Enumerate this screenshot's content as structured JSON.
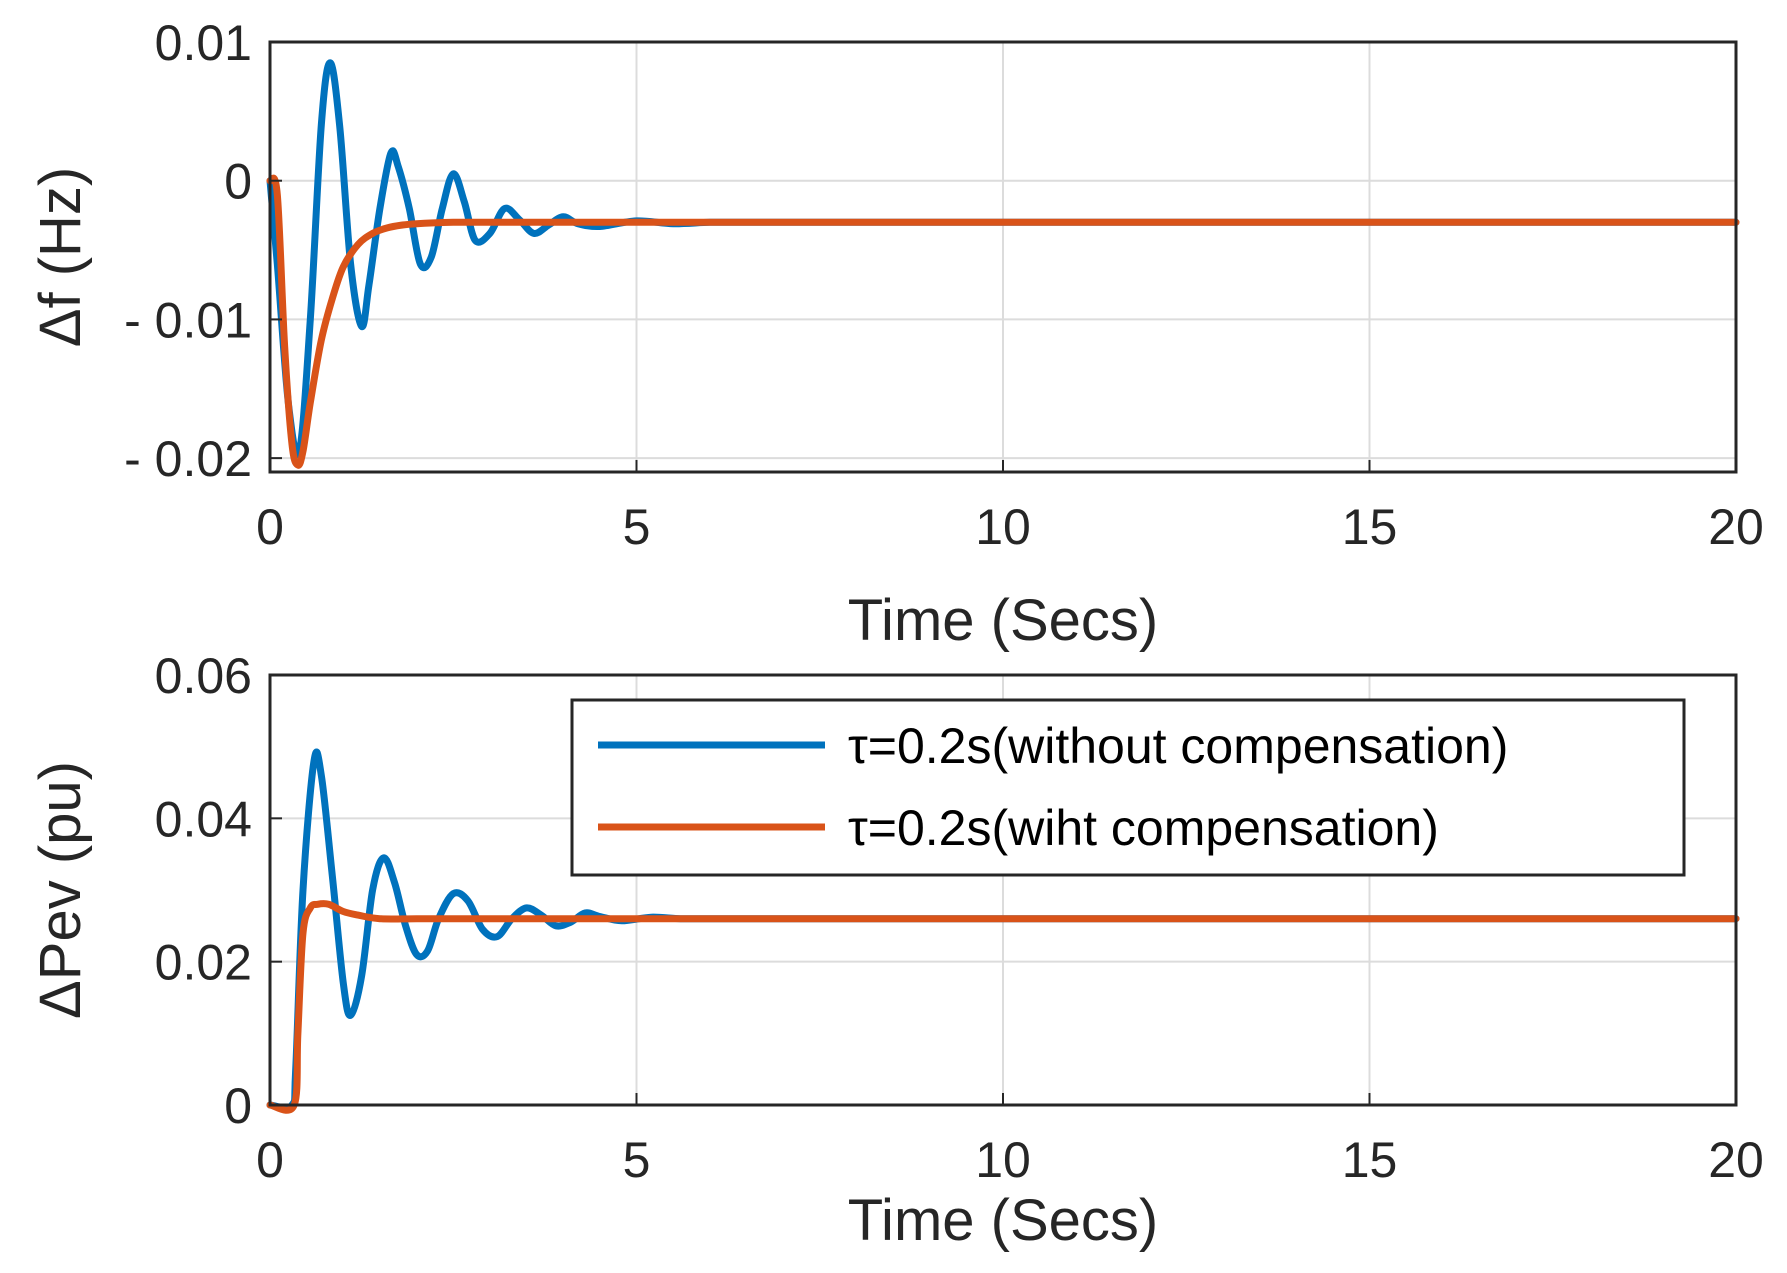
{
  "chart_data": [
    {
      "type": "line",
      "xlabel": "Time (Secs)",
      "ylabel": "Δf (Hz)",
      "xlim": [
        0,
        20
      ],
      "ylim": [
        -0.021,
        0.01
      ],
      "xticks": [
        0,
        5,
        10,
        15,
        20
      ],
      "xtick_labels": [
        "0",
        "5",
        "10",
        "15",
        "20"
      ],
      "yticks": [
        0.01,
        0,
        -0.01,
        -0.02
      ],
      "ytick_labels": [
        "0.01",
        "0",
        "- 0.01",
        "- 0.02"
      ],
      "grid": true,
      "series": [
        {
          "name": "τ=0.2s(without compensation)",
          "color": "#0072BD",
          "x": [
            0,
            0.1,
            0.25,
            0.4,
            0.55,
            0.7,
            0.82,
            0.95,
            1.1,
            1.25,
            1.35,
            1.5,
            1.65,
            1.75,
            1.9,
            2.05,
            2.2,
            2.35,
            2.5,
            2.65,
            2.8,
            3.0,
            3.2,
            3.4,
            3.6,
            3.8,
            4.0,
            4.2,
            4.5,
            5.0,
            5.5,
            6.0,
            6.5,
            7.0,
            8.0,
            10.0,
            12.0,
            15.0,
            20.0
          ],
          "y": [
            0,
            -0.006,
            -0.016,
            -0.0195,
            -0.01,
            0.004,
            0.0085,
            0.004,
            -0.006,
            -0.0105,
            -0.0075,
            -0.002,
            0.002,
            0.001,
            -0.002,
            -0.006,
            -0.0055,
            -0.002,
            0.0005,
            -0.0015,
            -0.0043,
            -0.0038,
            -0.002,
            -0.0028,
            -0.0038,
            -0.0032,
            -0.0026,
            -0.0031,
            -0.0033,
            -0.0029,
            -0.0031,
            -0.003,
            -0.003,
            -0.003,
            -0.003,
            -0.003,
            -0.003,
            -0.003,
            -0.003
          ]
        },
        {
          "name": "τ=0.2s(wiht compensation)",
          "color": "#D95319",
          "x": [
            0,
            0.1,
            0.2,
            0.3,
            0.38,
            0.45,
            0.55,
            0.7,
            0.85,
            1.0,
            1.2,
            1.4,
            1.6,
            1.8,
            2.0,
            2.5,
            3.0,
            4.0,
            5.0,
            10.0,
            15.0,
            20.0
          ],
          "y": [
            0,
            -0.001,
            -0.012,
            -0.019,
            -0.0205,
            -0.0195,
            -0.016,
            -0.0115,
            -0.0085,
            -0.0062,
            -0.0046,
            -0.0038,
            -0.0034,
            -0.0032,
            -0.0031,
            -0.003,
            -0.003,
            -0.003,
            -0.003,
            -0.003,
            -0.003,
            -0.003
          ]
        }
      ]
    },
    {
      "type": "line",
      "xlabel": "Time (Secs)",
      "ylabel": "ΔPev (pu)",
      "xlim": [
        0,
        20
      ],
      "ylim": [
        0,
        0.06
      ],
      "xticks": [
        0,
        5,
        10,
        15,
        20
      ],
      "xtick_labels": [
        "0",
        "5",
        "10",
        "15",
        "20"
      ],
      "yticks": [
        0.06,
        0.04,
        0.02,
        0
      ],
      "ytick_labels": [
        "0.06",
        "0.04",
        "0.02",
        "0"
      ],
      "grid": true,
      "legend": "top-right",
      "series": [
        {
          "name": "τ=0.2s(without compensation)",
          "color": "#0072BD",
          "x": [
            0,
            0.3,
            0.35,
            0.45,
            0.6,
            0.7,
            0.85,
            1.0,
            1.1,
            1.25,
            1.4,
            1.55,
            1.7,
            1.85,
            2.0,
            2.15,
            2.3,
            2.5,
            2.7,
            2.9,
            3.1,
            3.3,
            3.5,
            3.7,
            3.9,
            4.1,
            4.3,
            4.5,
            4.8,
            5.2,
            5.6,
            6.0,
            7.0,
            8.0,
            10.0,
            15.0,
            20.0
          ],
          "y": [
            0,
            0,
            0.005,
            0.03,
            0.048,
            0.046,
            0.032,
            0.017,
            0.0125,
            0.018,
            0.03,
            0.0345,
            0.031,
            0.025,
            0.021,
            0.0215,
            0.026,
            0.0295,
            0.0285,
            0.0245,
            0.0235,
            0.026,
            0.0275,
            0.0265,
            0.025,
            0.0255,
            0.0268,
            0.0263,
            0.0257,
            0.0262,
            0.026,
            0.026,
            0.026,
            0.026,
            0.026,
            0.026,
            0.026
          ]
        },
        {
          "name": "τ=0.2s(wiht compensation)",
          "color": "#D95319",
          "x": [
            0,
            0.33,
            0.38,
            0.45,
            0.55,
            0.65,
            0.8,
            1.0,
            1.2,
            1.5,
            2.0,
            2.5,
            3.0,
            4.0,
            5.0,
            10.0,
            15.0,
            20.0
          ],
          "y": [
            0,
            0,
            0.01,
            0.024,
            0.0275,
            0.028,
            0.028,
            0.027,
            0.0265,
            0.026,
            0.026,
            0.026,
            0.026,
            0.026,
            0.026,
            0.026,
            0.026,
            0.026
          ]
        }
      ]
    }
  ]
}
